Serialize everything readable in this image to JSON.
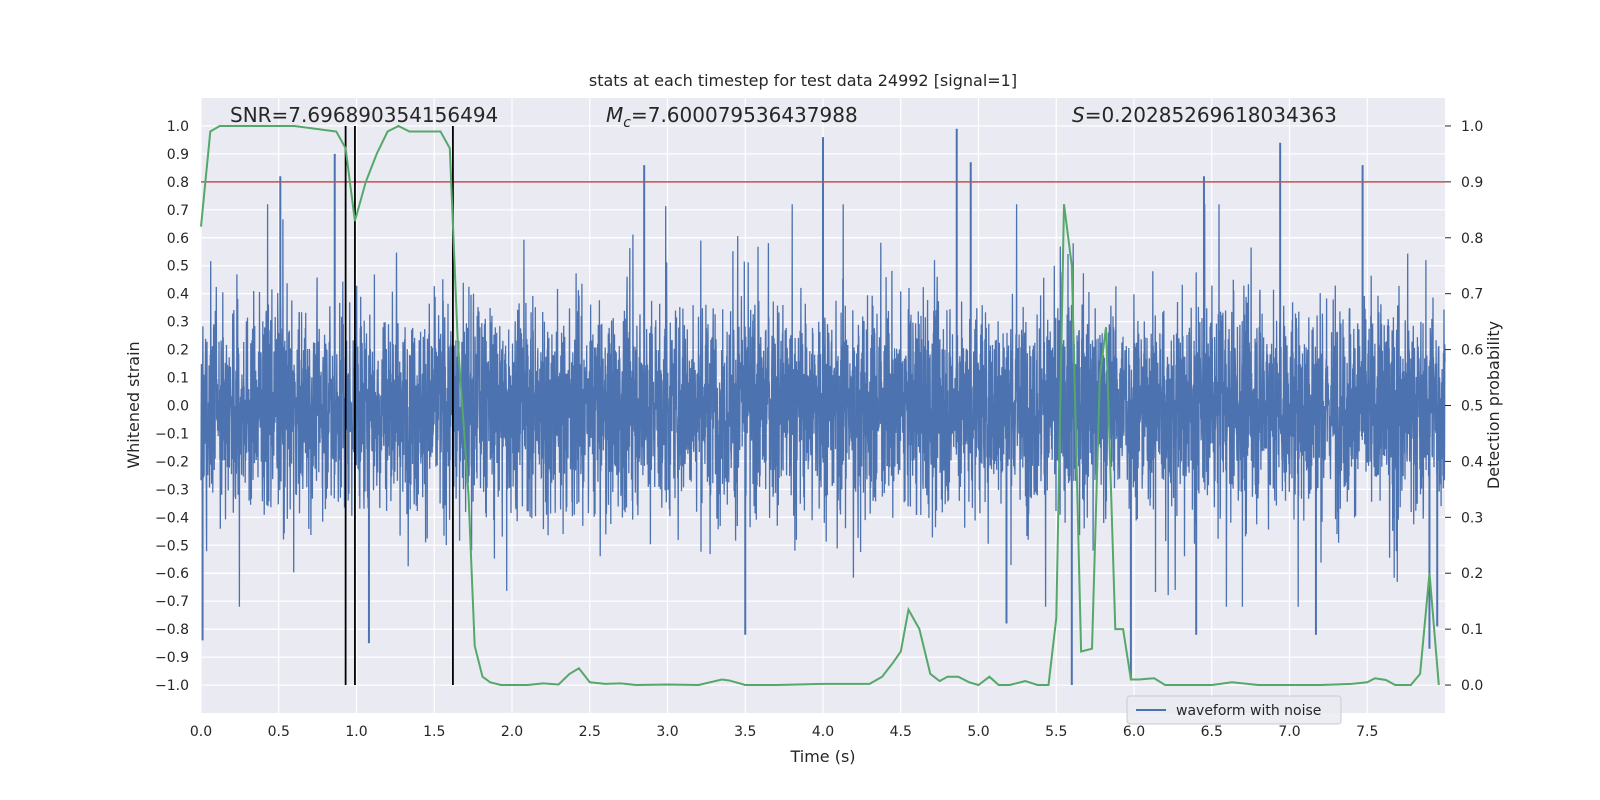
{
  "chart_data": {
    "type": "line",
    "title": "stats at each timestep for test data 24992 [signal=1]",
    "xlabel": "Time (s)",
    "ylabel_left": "Whitened strain",
    "ylabel_right": "Detection probability",
    "xlim": [
      0.0,
      8.0
    ],
    "ylim_left": [
      -1.1,
      1.1
    ],
    "ylim_right": [
      -0.05,
      1.05
    ],
    "x_ticks": [
      "0.0",
      "0.5",
      "1.0",
      "1.5",
      "2.0",
      "2.5",
      "3.0",
      "3.5",
      "4.0",
      "4.5",
      "5.0",
      "5.5",
      "6.0",
      "6.5",
      "7.0",
      "7.5"
    ],
    "y_ticks_left": [
      "1.0",
      "0.9",
      "0.8",
      "0.7",
      "0.6",
      "0.5",
      "0.4",
      "0.3",
      "0.2",
      "0.1",
      "0.0",
      "−0.1",
      "−0.2",
      "−0.3",
      "−0.4",
      "−0.5",
      "−0.6",
      "−0.7",
      "−0.8",
      "−0.9",
      "−1.0"
    ],
    "y_ticks_right": [
      "1.0",
      "0.9",
      "0.8",
      "0.7",
      "0.6",
      "0.5",
      "0.4",
      "0.3",
      "0.2",
      "0.1",
      "0.0"
    ],
    "grid": true,
    "legend": {
      "position": "bottom-right",
      "entries": [
        "waveform with noise"
      ]
    },
    "annotations": {
      "snr": "SNR=7.696890354156494",
      "mc_symbol": "M",
      "mc_sub": "c",
      "mc_value": "=7.600079536437988",
      "s_symbol": "S",
      "s_value": "=0.20285269618034363"
    },
    "threshold_probability": 0.9,
    "vertical_markers_s": [
      0.93,
      0.99,
      1.62
    ],
    "series": [
      {
        "name": "waveform with noise",
        "axis": "left",
        "color": "#4c72b0",
        "style": "dense noisy strain, core amplitude about ±0.4 with spikes up to about ±1.0",
        "spikes": [
          {
            "x": 0.01,
            "y": -0.84
          },
          {
            "x": 0.51,
            "y": 0.82
          },
          {
            "x": 0.86,
            "y": 0.9
          },
          {
            "x": 1.08,
            "y": -0.85
          },
          {
            "x": 2.85,
            "y": 0.86
          },
          {
            "x": 3.5,
            "y": -0.82
          },
          {
            "x": 4.0,
            "y": 0.96
          },
          {
            "x": 4.86,
            "y": 0.99
          },
          {
            "x": 4.95,
            "y": 0.87
          },
          {
            "x": 5.18,
            "y": -0.78
          },
          {
            "x": 5.6,
            "y": -1.0
          },
          {
            "x": 5.98,
            "y": -0.98
          },
          {
            "x": 6.4,
            "y": -0.82
          },
          {
            "x": 6.45,
            "y": 0.82
          },
          {
            "x": 6.94,
            "y": 0.94
          },
          {
            "x": 7.17,
            "y": -0.82
          },
          {
            "x": 7.47,
            "y": 0.86
          },
          {
            "x": 7.9,
            "y": -0.87
          },
          {
            "x": 7.95,
            "y": -0.79
          }
        ]
      },
      {
        "name": "detection probability",
        "axis": "right",
        "color": "#55a868",
        "x": [
          0.0,
          0.06,
          0.12,
          0.3,
          0.6,
          0.87,
          0.93,
          0.99,
          1.06,
          1.13,
          1.2,
          1.27,
          1.34,
          1.4,
          1.47,
          1.54,
          1.6,
          1.65,
          1.72,
          1.76,
          1.81,
          1.86,
          1.93,
          2.0,
          2.1,
          2.2,
          2.3,
          2.37,
          2.43,
          2.5,
          2.6,
          2.7,
          2.8,
          3.0,
          3.2,
          3.35,
          3.4,
          3.5,
          3.7,
          4.0,
          4.3,
          4.38,
          4.45,
          4.5,
          4.55,
          4.62,
          4.69,
          4.75,
          4.8,
          4.87,
          4.94,
          5.0,
          5.07,
          5.13,
          5.2,
          5.3,
          5.38,
          5.45,
          5.5,
          5.55,
          5.6,
          5.66,
          5.73,
          5.78,
          5.82,
          5.88,
          5.93,
          5.98,
          6.03,
          6.13,
          6.2,
          6.3,
          6.4,
          6.5,
          6.63,
          6.8,
          7.0,
          7.2,
          7.4,
          7.5,
          7.55,
          7.62,
          7.68,
          7.78,
          7.84,
          7.9,
          7.96
        ],
        "values": [
          0.82,
          0.99,
          1.0,
          1.0,
          1.0,
          0.99,
          0.96,
          0.83,
          0.9,
          0.95,
          0.99,
          1.0,
          0.99,
          0.99,
          0.99,
          0.99,
          0.96,
          0.62,
          0.34,
          0.07,
          0.015,
          0.005,
          0.0,
          0.0,
          0.0,
          0.003,
          0.001,
          0.02,
          0.03,
          0.005,
          0.002,
          0.003,
          0.0,
          0.001,
          0.0,
          0.01,
          0.008,
          0.0,
          0.0,
          0.002,
          0.002,
          0.015,
          0.04,
          0.06,
          0.135,
          0.1,
          0.02,
          0.007,
          0.015,
          0.015,
          0.005,
          0.0,
          0.015,
          0.0,
          0.0,
          0.007,
          0.0,
          0.0,
          0.12,
          0.86,
          0.75,
          0.06,
          0.065,
          0.55,
          0.64,
          0.1,
          0.1,
          0.01,
          0.01,
          0.012,
          0.0,
          0.0,
          0.0,
          0.0,
          0.005,
          0.0,
          0.0,
          0.0,
          0.002,
          0.005,
          0.012,
          0.009,
          0.0,
          0.0,
          0.02,
          0.2,
          0.0
        ]
      }
    ]
  }
}
